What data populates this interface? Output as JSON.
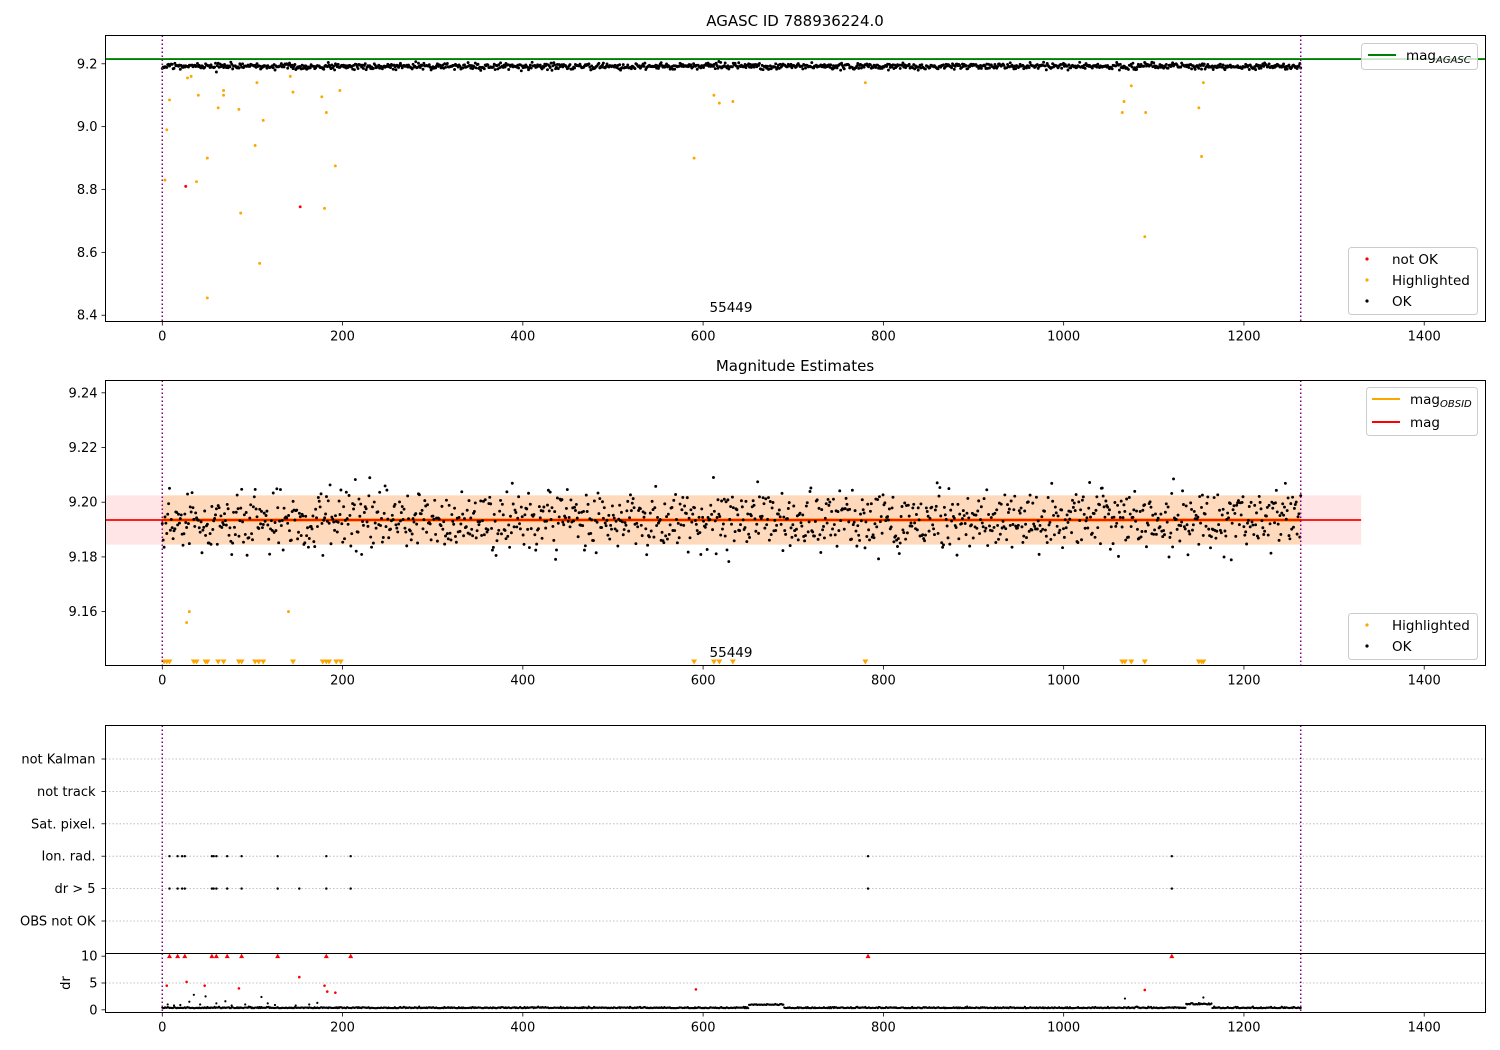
{
  "chart_data": [
    {
      "type": "scatter",
      "title": "AGASC ID 788936224.0",
      "xlim": [
        -63,
        1468
      ],
      "ylim": [
        8.38,
        9.29
      ],
      "xticks": [
        0,
        200,
        400,
        600,
        800,
        1000,
        1200,
        1400
      ],
      "yticks": [
        8.4,
        8.6,
        8.8,
        9.0,
        9.2
      ],
      "ytick_labels": [
        "8.4",
        "8.6",
        "8.8",
        "9.0",
        "9.2"
      ],
      "vlines": [
        0,
        1263
      ],
      "obsid_label": {
        "text": "55449",
        "x": 631
      },
      "grid": false,
      "legend_lines": {
        "placement": "upper right",
        "entries": [
          {
            "label": "mag",
            "subscript": "AGASC",
            "color": "#008000"
          }
        ]
      },
      "legend_points": {
        "placement": "lower right",
        "entries": [
          {
            "label": "not OK",
            "color": "#ff0000"
          },
          {
            "label": "Highlighted",
            "color": "#ffa500"
          },
          {
            "label": "OK",
            "color": "#000000"
          }
        ]
      },
      "mag_agasc": 9.215,
      "series": [
        {
          "name": "OK",
          "color": "#000000",
          "n_points": 1263,
          "x_range": [
            0,
            1263
          ],
          "mean": 9.192,
          "std": 0.008
        },
        {
          "name": "Highlighted",
          "color": "#ffa500",
          "points": [
            [
              3,
              8.83
            ],
            [
              5,
              8.99
            ],
            [
              8,
              9.085
            ],
            [
              28,
              9.155
            ],
            [
              32,
              9.16
            ],
            [
              38,
              8.825
            ],
            [
              40,
              9.1
            ],
            [
              50,
              8.455
            ],
            [
              50,
              8.9
            ],
            [
              62,
              9.06
            ],
            [
              68,
              9.1
            ],
            [
              68,
              9.115
            ],
            [
              85,
              9.055
            ],
            [
              87,
              8.725
            ],
            [
              103,
              8.94
            ],
            [
              105,
              9.14
            ],
            [
              108,
              8.565
            ],
            [
              112,
              9.02
            ],
            [
              142,
              9.16
            ],
            [
              145,
              9.11
            ],
            [
              177,
              9.095
            ],
            [
              180,
              8.74
            ],
            [
              182,
              9.045
            ],
            [
              192,
              8.875
            ],
            [
              197,
              9.115
            ],
            [
              590,
              8.9
            ],
            [
              612,
              9.1
            ],
            [
              618,
              9.075
            ],
            [
              633,
              9.08
            ],
            [
              780,
              9.14
            ],
            [
              1065,
              9.045
            ],
            [
              1067,
              9.08
            ],
            [
              1075,
              9.13
            ],
            [
              1090,
              8.65
            ],
            [
              1091,
              9.045
            ],
            [
              1150,
              9.06
            ],
            [
              1153,
              8.905
            ],
            [
              1155,
              9.14
            ]
          ]
        },
        {
          "name": "not OK",
          "color": "#ff0000",
          "points": [
            [
              26,
              8.81
            ],
            [
              153,
              8.745
            ]
          ]
        }
      ]
    },
    {
      "type": "scatter",
      "title": "Magnitude Estimates",
      "xlim": [
        -63,
        1468
      ],
      "ylim": [
        9.1403,
        9.2445
      ],
      "xticks": [
        0,
        200,
        400,
        600,
        800,
        1000,
        1200,
        1400
      ],
      "yticks": [
        9.16,
        9.18,
        9.2,
        9.22,
        9.24
      ],
      "ytick_labels": [
        "9.16",
        "9.18",
        "9.20",
        "9.22",
        "9.24"
      ],
      "vlines": [
        0,
        1263
      ],
      "obsid_label": {
        "text": "55449",
        "x": 631
      },
      "grid": false,
      "legend_lines": {
        "placement": "upper right",
        "entries": [
          {
            "label": "mag",
            "subscript": "OBSID",
            "color": "#ffa500"
          },
          {
            "label": "mag",
            "subscript": "",
            "color": "#ff0000"
          }
        ]
      },
      "legend_points": {
        "placement": "lower right",
        "entries": [
          {
            "label": "Highlighted",
            "color": "#ffa500"
          },
          {
            "label": "OK",
            "color": "#000000"
          }
        ]
      },
      "mag": 9.1935,
      "mag_band": [
        9.1845,
        9.2025
      ],
      "mag_line_x": [
        -63,
        1330
      ],
      "mag_obsid": 9.1935,
      "mag_obsid_x": [
        0,
        1263
      ],
      "series": [
        {
          "name": "OK",
          "color": "#000000",
          "n_points": 1263,
          "x_range": [
            0,
            1263
          ],
          "mean": 9.1935,
          "std": 0.0085
        },
        {
          "name": "Highlighted",
          "color": "#ffa500",
          "points": [
            [
              27,
              9.156
            ],
            [
              30,
              9.16
            ],
            [
              140,
              9.16
            ]
          ]
        },
        {
          "name": "Highlighted (below range)",
          "color": "#ffa500",
          "marker": "triangle-down",
          "x": [
            2,
            5,
            8,
            35,
            38,
            48,
            50,
            62,
            68,
            85,
            88,
            103,
            107,
            112,
            145,
            178,
            182,
            185,
            193,
            198,
            590,
            612,
            618,
            633,
            780,
            1065,
            1068,
            1075,
            1090,
            1150,
            1153,
            1155
          ]
        }
      ]
    },
    {
      "type": "scatter",
      "title": "",
      "xlim": [
        -63,
        1468
      ],
      "xticks": [
        0,
        200,
        400,
        600,
        800,
        1000,
        1200,
        1400
      ],
      "vlines": [
        0,
        1263
      ],
      "grid": "y dotted",
      "flag_rows": [
        "not Kalman",
        "not track",
        "Sat. pixel.",
        "Ion. rad.",
        "dr > 5",
        "OBS not OK"
      ],
      "flags": {
        "Ion. rad.": [
          8,
          17,
          22,
          25,
          55,
          57,
          60,
          72,
          88,
          128,
          182,
          209,
          783,
          1120
        ],
        "dr > 5": [
          8,
          17,
          22,
          25,
          55,
          57,
          60,
          72,
          88,
          128,
          152,
          182,
          209,
          783,
          1120
        ]
      },
      "dr": {
        "ylabel": "dr",
        "ylim": [
          -0.5,
          10.5
        ],
        "yticks": [
          0,
          5,
          10
        ],
        "ytick_labels": [
          "0",
          "5",
          "10"
        ],
        "clip_value": 10,
        "flagged_clipped_x": [
          8,
          17,
          25,
          55,
          60,
          72,
          88,
          128,
          182,
          209,
          783,
          1120
        ],
        "flagged_points": [
          [
            5,
            4.5
          ],
          [
            27,
            5.2
          ],
          [
            47,
            4.5
          ],
          [
            85,
            4.0
          ],
          [
            152,
            6.1
          ],
          [
            180,
            4.5
          ],
          [
            183,
            3.4
          ],
          [
            192,
            3.2
          ],
          [
            592,
            3.8
          ],
          [
            1090,
            3.7
          ]
        ],
        "ok_baseline": 0.3,
        "ok_scatter_points": [
          [
            6,
            1.0
          ],
          [
            13,
            0.8
          ],
          [
            20,
            0.9
          ],
          [
            30,
            1.5
          ],
          [
            35,
            2.8
          ],
          [
            42,
            1.0
          ],
          [
            48,
            2.5
          ],
          [
            60,
            1.2
          ],
          [
            70,
            1.6
          ],
          [
            77,
            0.8
          ],
          [
            92,
            1.0
          ],
          [
            110,
            2.4
          ],
          [
            117,
            1.2
          ],
          [
            125,
            0.9
          ],
          [
            148,
            0.8
          ],
          [
            163,
            1.0
          ],
          [
            172,
            1.3
          ],
          [
            1068,
            2.1
          ],
          [
            1155,
            2.3
          ]
        ]
      }
    }
  ]
}
